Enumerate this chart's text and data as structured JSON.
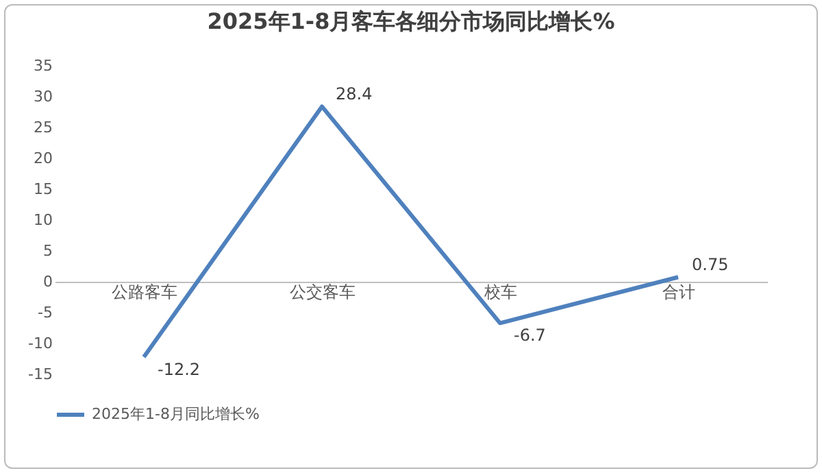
{
  "chart_data": {
    "type": "line",
    "title": "2025年1-8月客车各细分市场同比增长%",
    "categories": [
      "公路客车",
      "公交客车",
      "校车",
      "合计"
    ],
    "series": [
      {
        "name": "2025年1-8月同比增长%",
        "color": "#4f81bd",
        "values": [
          -12.2,
          28.4,
          -6.7,
          0.75
        ]
      }
    ],
    "ylim": [
      -15,
      35
    ],
    "yticks": [
      -15,
      -10,
      -5,
      0,
      5,
      10,
      15,
      20,
      25,
      30,
      35
    ],
    "grid": false,
    "legend": "bottom",
    "data_labels": true,
    "marker": "none",
    "line_style": "solid"
  }
}
